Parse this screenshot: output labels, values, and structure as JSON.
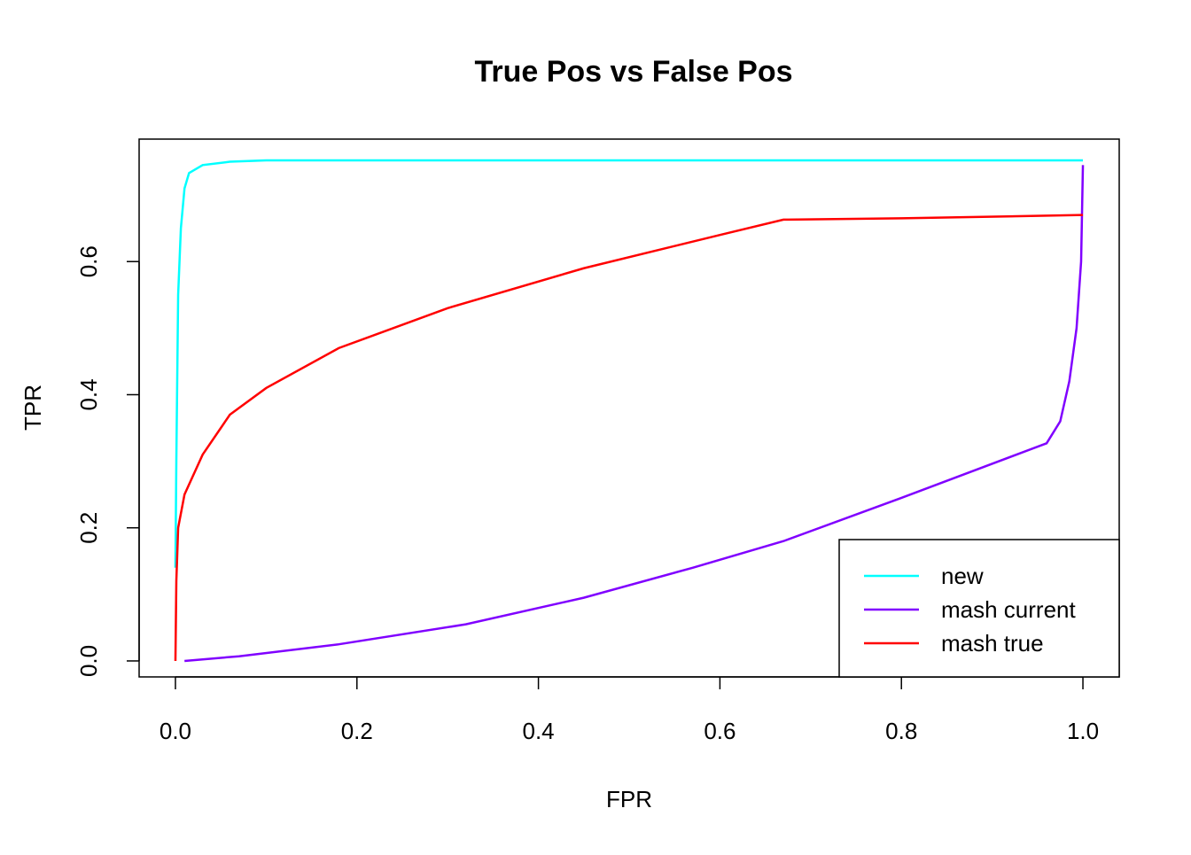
{
  "chart_data": {
    "type": "line",
    "title": "True Pos vs False Pos",
    "x_label": "FPR",
    "y_label": "TPR",
    "xlim": [
      -0.04,
      1.04
    ],
    "ylim": [
      -0.024,
      0.784
    ],
    "xticks": [
      {
        "value": 0,
        "label": "0.0"
      },
      {
        "value": 0.2,
        "label": "0.2"
      },
      {
        "value": 0.4,
        "label": "0.4"
      },
      {
        "value": 0.6,
        "label": "0.6"
      },
      {
        "value": 0.8,
        "label": "0.8"
      },
      {
        "value": 1,
        "label": "1.0"
      }
    ],
    "yticks": [
      {
        "value": 0,
        "label": "0.0"
      },
      {
        "value": 0.2,
        "label": "0.2"
      },
      {
        "value": 0.4,
        "label": "0.4"
      },
      {
        "value": 0.6,
        "label": "0.6"
      }
    ],
    "legend_position": "bottomright",
    "series": [
      {
        "name": "new",
        "color": "#00ffff",
        "x": [
          0,
          0.001,
          0.003,
          0.006,
          0.01,
          0.015,
          0.03,
          0.06,
          0.1,
          1
        ],
        "values": [
          0.14,
          0.3,
          0.55,
          0.65,
          0.71,
          0.733,
          0.745,
          0.75,
          0.752,
          0.752
        ]
      },
      {
        "name": "mash current",
        "color": "#8000ff",
        "x": [
          0.01,
          0.07,
          0.18,
          0.32,
          0.45,
          0.57,
          0.67,
          0.8,
          0.96,
          0.975,
          0.985,
          0.993,
          0.998,
          1
        ],
        "values": [
          0,
          0.007,
          0.025,
          0.055,
          0.095,
          0.14,
          0.18,
          0.245,
          0.327,
          0.36,
          0.42,
          0.5,
          0.6,
          0.745
        ]
      },
      {
        "name": "mash true",
        "color": "#ff0000",
        "x": [
          0,
          0.001,
          0.003,
          0.01,
          0.03,
          0.06,
          0.1,
          0.18,
          0.3,
          0.45,
          0.6,
          0.67,
          0.8,
          1
        ],
        "values": [
          0,
          0.12,
          0.2,
          0.25,
          0.31,
          0.37,
          0.41,
          0.47,
          0.53,
          0.59,
          0.64,
          0.663,
          0.665,
          0.67
        ]
      }
    ]
  }
}
